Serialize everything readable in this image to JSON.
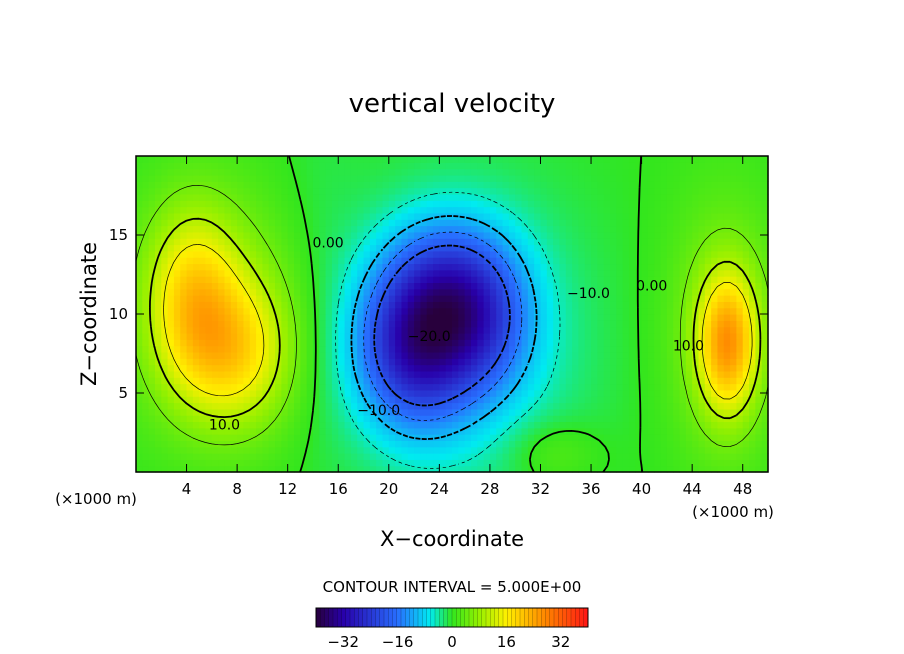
{
  "chart_data": {
    "type": "heatmap",
    "title": "vertical velocity",
    "xlabel": "X−coordinate",
    "ylabel": "Z−coordinate",
    "x_unit": "(×1000 m)",
    "y_unit": "(×1000 m)",
    "xlim": [
      0,
      50
    ],
    "ylim": [
      0,
      20
    ],
    "x_ticks": [
      4,
      8,
      12,
      16,
      20,
      24,
      28,
      32,
      36,
      40,
      44,
      48
    ],
    "y_ticks": [
      5,
      10,
      15
    ],
    "x_tick_labels": [
      "4",
      "8",
      "12",
      "16",
      "20",
      "24",
      "28",
      "32",
      "36",
      "40",
      "44",
      "48"
    ],
    "y_tick_labels": [
      "5",
      "10",
      "15"
    ],
    "contour_interval_text": "CONTOUR INTERVAL = 5.000E+00",
    "contour_labels": [
      {
        "text": "0.00",
        "x": 15.2,
        "y": 14.2
      },
      {
        "text": "0.00",
        "x": 40.8,
        "y": 11.5
      },
      {
        "text": "−10.0",
        "x": 35.8,
        "y": 11.0
      },
      {
        "text": "−20.0",
        "x": 23.2,
        "y": 8.3
      },
      {
        "text": "−10.0",
        "x": 19.2,
        "y": 3.6
      },
      {
        "text": "10.0",
        "x": 7.0,
        "y": 2.7
      },
      {
        "text": "10.0",
        "x": 43.7,
        "y": 7.7
      }
    ],
    "colorbar": {
      "min": -40,
      "max": 40,
      "ticks": [
        -32,
        -16,
        0,
        16,
        32
      ],
      "tick_labels": [
        "−32",
        "−16",
        "0",
        "16",
        "32"
      ]
    },
    "features": [
      {
        "x": 22.0,
        "y": 8.0,
        "sx": 3.2,
        "sy": 3.5,
        "amp": -26
      },
      {
        "x": 27.0,
        "y": 9.5,
        "sx": 3.0,
        "sy": 3.2,
        "amp": -16
      },
      {
        "x": 24.5,
        "y": 12.5,
        "sx": 3.5,
        "sy": 2.8,
        "amp": -11
      },
      {
        "x": 26.5,
        "y": 8.0,
        "sx": 6.5,
        "sy": 7.0,
        "amp": -6
      },
      {
        "x": 4.5,
        "y": 11.0,
        "sx": 2.5,
        "sy": 4.0,
        "amp": 14
      },
      {
        "x": 8.0,
        "y": 7.5,
        "sx": 3.0,
        "sy": 3.2,
        "amp": 12
      },
      {
        "x": 7.0,
        "y": 10.0,
        "sx": 5.5,
        "sy": 5.5,
        "amp": 7
      },
      {
        "x": 46.8,
        "y": 8.2,
        "sx": 1.6,
        "sy": 3.0,
        "amp": 20
      },
      {
        "x": 46.5,
        "y": 9.0,
        "sx": 3.2,
        "sy": 6.0,
        "amp": 7
      },
      {
        "x": 33.0,
        "y": 1.2,
        "sx": 2.5,
        "sy": 1.5,
        "amp": 4
      },
      {
        "x": 14.5,
        "y": 12.0,
        "sx": 2.5,
        "sy": 8.0,
        "amp": -2
      }
    ]
  }
}
